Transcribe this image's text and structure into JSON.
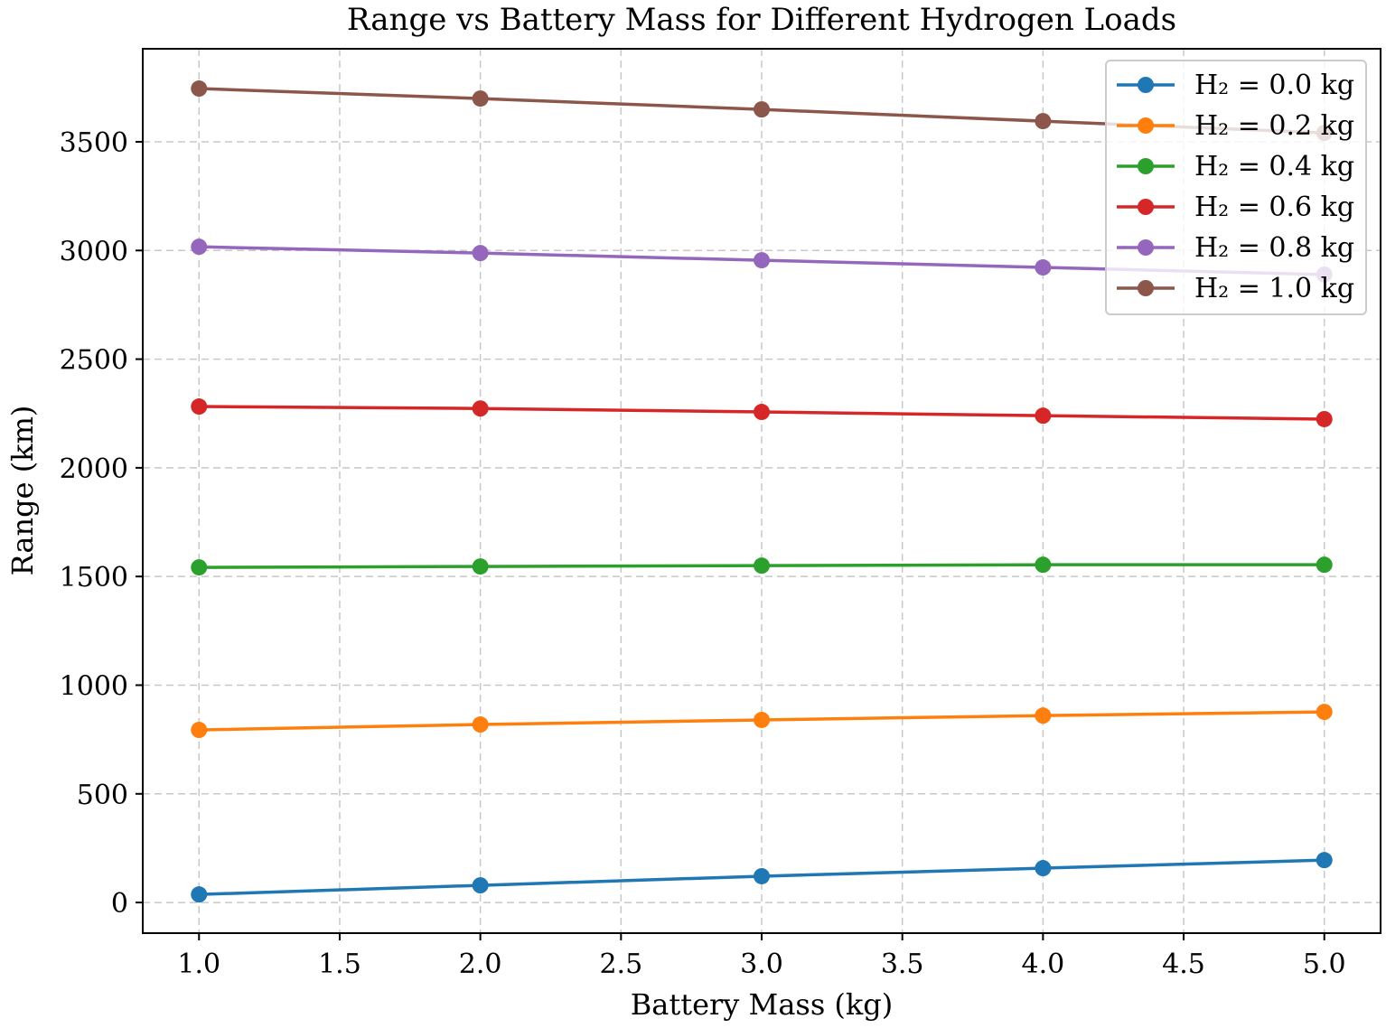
{
  "chart_data": {
    "type": "line",
    "title": "Range vs Battery Mass for Different Hydrogen Loads",
    "xlabel": "Battery Mass (kg)",
    "ylabel": "Range (km)",
    "xlim": [
      0.8,
      5.2
    ],
    "ylim": [
      -141,
      3928
    ],
    "xticks": [
      1.0,
      1.5,
      2.0,
      2.5,
      3.0,
      3.5,
      4.0,
      4.5,
      5.0
    ],
    "xtick_labels": [
      "1.0",
      "1.5",
      "2.0",
      "2.5",
      "3.0",
      "3.5",
      "4.0",
      "4.5",
      "5.0"
    ],
    "yticks": [
      0,
      500,
      1000,
      1500,
      2000,
      2500,
      3000,
      3500
    ],
    "ytick_labels": [
      "0",
      "500",
      "1000",
      "1500",
      "2000",
      "2500",
      "3000",
      "3500"
    ],
    "grid": true,
    "legend_position": "top-right",
    "x": [
      1.0,
      2.0,
      3.0,
      4.0,
      5.0
    ],
    "series": [
      {
        "name": "H₂ = 0.0 kg",
        "color": "#1f77b4",
        "values": [
          37,
          79,
          121,
          158,
          195
        ]
      },
      {
        "name": "H₂ = 0.2 kg",
        "color": "#ff7f0e",
        "values": [
          794,
          819,
          840,
          860,
          877
        ]
      },
      {
        "name": "H₂ = 0.4 kg",
        "color": "#2ca02c",
        "values": [
          1542,
          1546,
          1550,
          1554,
          1554
        ]
      },
      {
        "name": "H₂ = 0.6 kg",
        "color": "#d62728",
        "values": [
          2282,
          2273,
          2257,
          2240,
          2224
        ]
      },
      {
        "name": "H₂ = 0.8 kg",
        "color": "#9467bd",
        "values": [
          3017,
          2988,
          2955,
          2922,
          2889
        ]
      },
      {
        "name": "H₂ = 1.0 kg",
        "color": "#8c564b",
        "values": [
          3745,
          3699,
          3649,
          3595,
          3541
        ]
      }
    ]
  }
}
